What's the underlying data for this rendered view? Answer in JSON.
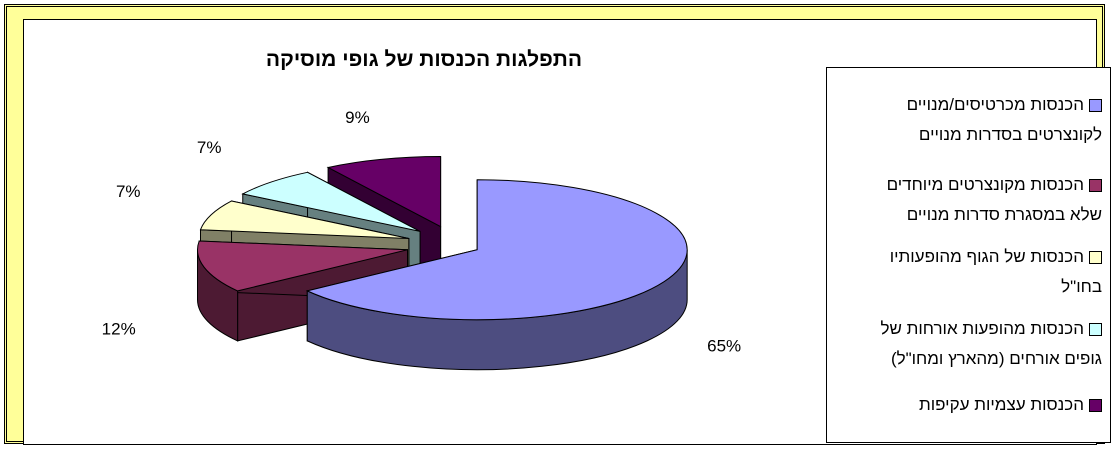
{
  "chart_data": {
    "type": "pie",
    "title": "התפלגות הכנסות של גופי מוסיקה",
    "legend_position": "right",
    "slices": [
      {
        "label": "הכנסות מכרטיסים/מנויים לקונצרטים בסדרות מנויים",
        "value": 65,
        "value_label": "65%",
        "color": "#9999ff",
        "side_color": "#4d4d80"
      },
      {
        "label": "הכנסות מקונצרטים מיוחדים שלא במסגרת סדרות מנויים",
        "value": 12,
        "value_label": "12%",
        "color": "#993366",
        "side_color": "#4d1a33"
      },
      {
        "label": "הכנסות של הגוף מהופעותיו בחו\"ל",
        "value": 7,
        "value_label": "7%",
        "color": "#ffffcc",
        "side_color": "#808066"
      },
      {
        "label": "הכנסות מהופעות אורחות של גופים אורחים (מהארץ ומחו\"ל)",
        "value": 7,
        "value_label": "7%",
        "color": "#ccffff",
        "side_color": "#668080"
      },
      {
        "label": "הכנסות עצמיות עקיפות",
        "value": 9,
        "value_label": "9%",
        "color": "#660066",
        "side_color": "#330033"
      }
    ]
  }
}
